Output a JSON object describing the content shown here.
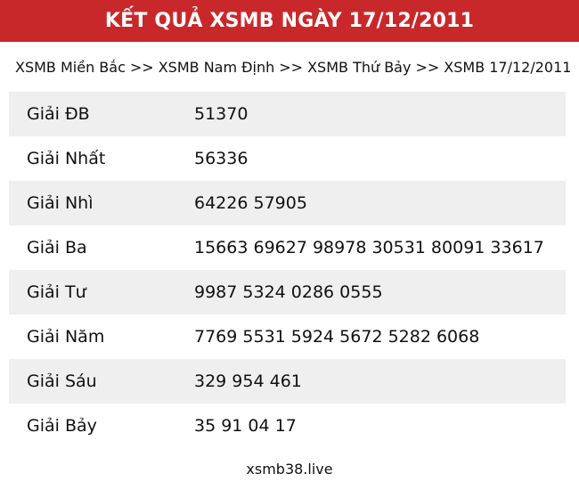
{
  "header": {
    "title": "KẾT QUẢ XSMB NGÀY 17/12/2011",
    "bg_color": "#c9282b",
    "text_color": "#ffffff"
  },
  "breadcrumb": {
    "separator": ">>",
    "segments": [
      "XSMB Miền Bắc",
      "XSMB Nam Định",
      "XSMB Thứ Bảy",
      "XSMB 17/12/2011"
    ]
  },
  "results_table": {
    "alt_row_color": "#efefef",
    "rows": [
      {
        "label": "Giải ĐB",
        "value": "51370"
      },
      {
        "label": "Giải Nhất",
        "value": "56336"
      },
      {
        "label": "Giải Nhì",
        "value": "64226 57905"
      },
      {
        "label": "Giải Ba",
        "value": "15663 69627 98978 30531 80091 33617"
      },
      {
        "label": "Giải Tư",
        "value": "9987 5324 0286 0555"
      },
      {
        "label": "Giải Năm",
        "value": "7769 5531 5924 5672 5282 6068"
      },
      {
        "label": "Giải Sáu",
        "value": "329 954 461"
      },
      {
        "label": "Giải Bảy",
        "value": "35 91 04 17"
      }
    ]
  },
  "footer": {
    "site": "xsmb38.live"
  }
}
